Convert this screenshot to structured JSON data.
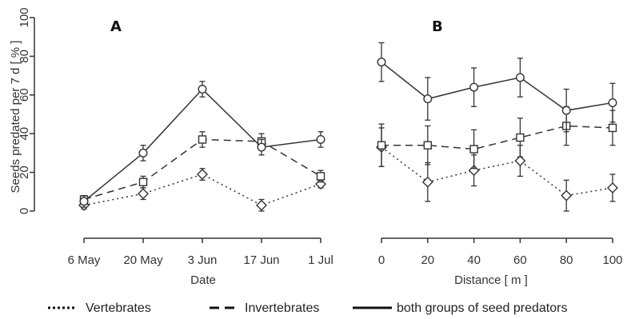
{
  "chart_data": [
    {
      "type": "line",
      "panel_label": "A",
      "xlabel": "Date",
      "ylabel": "Seeds predated per 7 d [ % ]",
      "categories": [
        "6 May",
        "20 May",
        "3 Jun",
        "17 Jun",
        "1 Jul"
      ],
      "ylim": [
        0,
        100
      ],
      "yticks": [
        "0",
        "20",
        "40",
        "60",
        "80",
        "100"
      ],
      "grid": false,
      "series": [
        {
          "name": "Vertebrates",
          "line": "dotted",
          "marker": "diamond",
          "values": [
            3,
            9,
            19,
            3,
            14
          ],
          "err": [
            2,
            3,
            3,
            3,
            2
          ]
        },
        {
          "name": "Invertebrates",
          "line": "dashed",
          "marker": "square",
          "values": [
            6,
            15,
            37,
            36,
            18
          ],
          "err": [
            2,
            3,
            4,
            4,
            3
          ]
        },
        {
          "name": "both groups of seed predators",
          "line": "solid",
          "marker": "circle",
          "values": [
            5,
            30,
            63,
            33,
            37
          ],
          "err": [
            3,
            4,
            4,
            4,
            4
          ]
        }
      ]
    },
    {
      "type": "line",
      "panel_label": "B",
      "xlabel": "Distance [ m ]",
      "ylabel": "",
      "x": [
        0,
        20,
        40,
        60,
        80,
        100
      ],
      "xticks": [
        "0",
        "20",
        "40",
        "60",
        "80",
        "100"
      ],
      "ylim": [
        0,
        100
      ],
      "grid": false,
      "series": [
        {
          "name": "Vertebrates",
          "line": "dotted",
          "marker": "diamond",
          "values": [
            33,
            15,
            21,
            26,
            8,
            12
          ],
          "err": [
            10,
            10,
            8,
            8,
            8,
            7
          ]
        },
        {
          "name": "Invertebrates",
          "line": "dashed",
          "marker": "square",
          "values": [
            34,
            34,
            32,
            38,
            44,
            43
          ],
          "err": [
            11,
            10,
            10,
            10,
            10,
            9
          ]
        },
        {
          "name": "both groups of seed predators",
          "line": "solid",
          "marker": "circle",
          "values": [
            77,
            58,
            64,
            69,
            52,
            56
          ],
          "err": [
            10,
            11,
            10,
            10,
            11,
            10
          ]
        }
      ]
    }
  ],
  "legend": {
    "placement": "bottom",
    "items": [
      {
        "label": "Vertebrates",
        "line": "dotted"
      },
      {
        "label": "Invertebrates",
        "line": "dashed"
      },
      {
        "label": "both groups of seed predators",
        "line": "solid"
      }
    ]
  }
}
